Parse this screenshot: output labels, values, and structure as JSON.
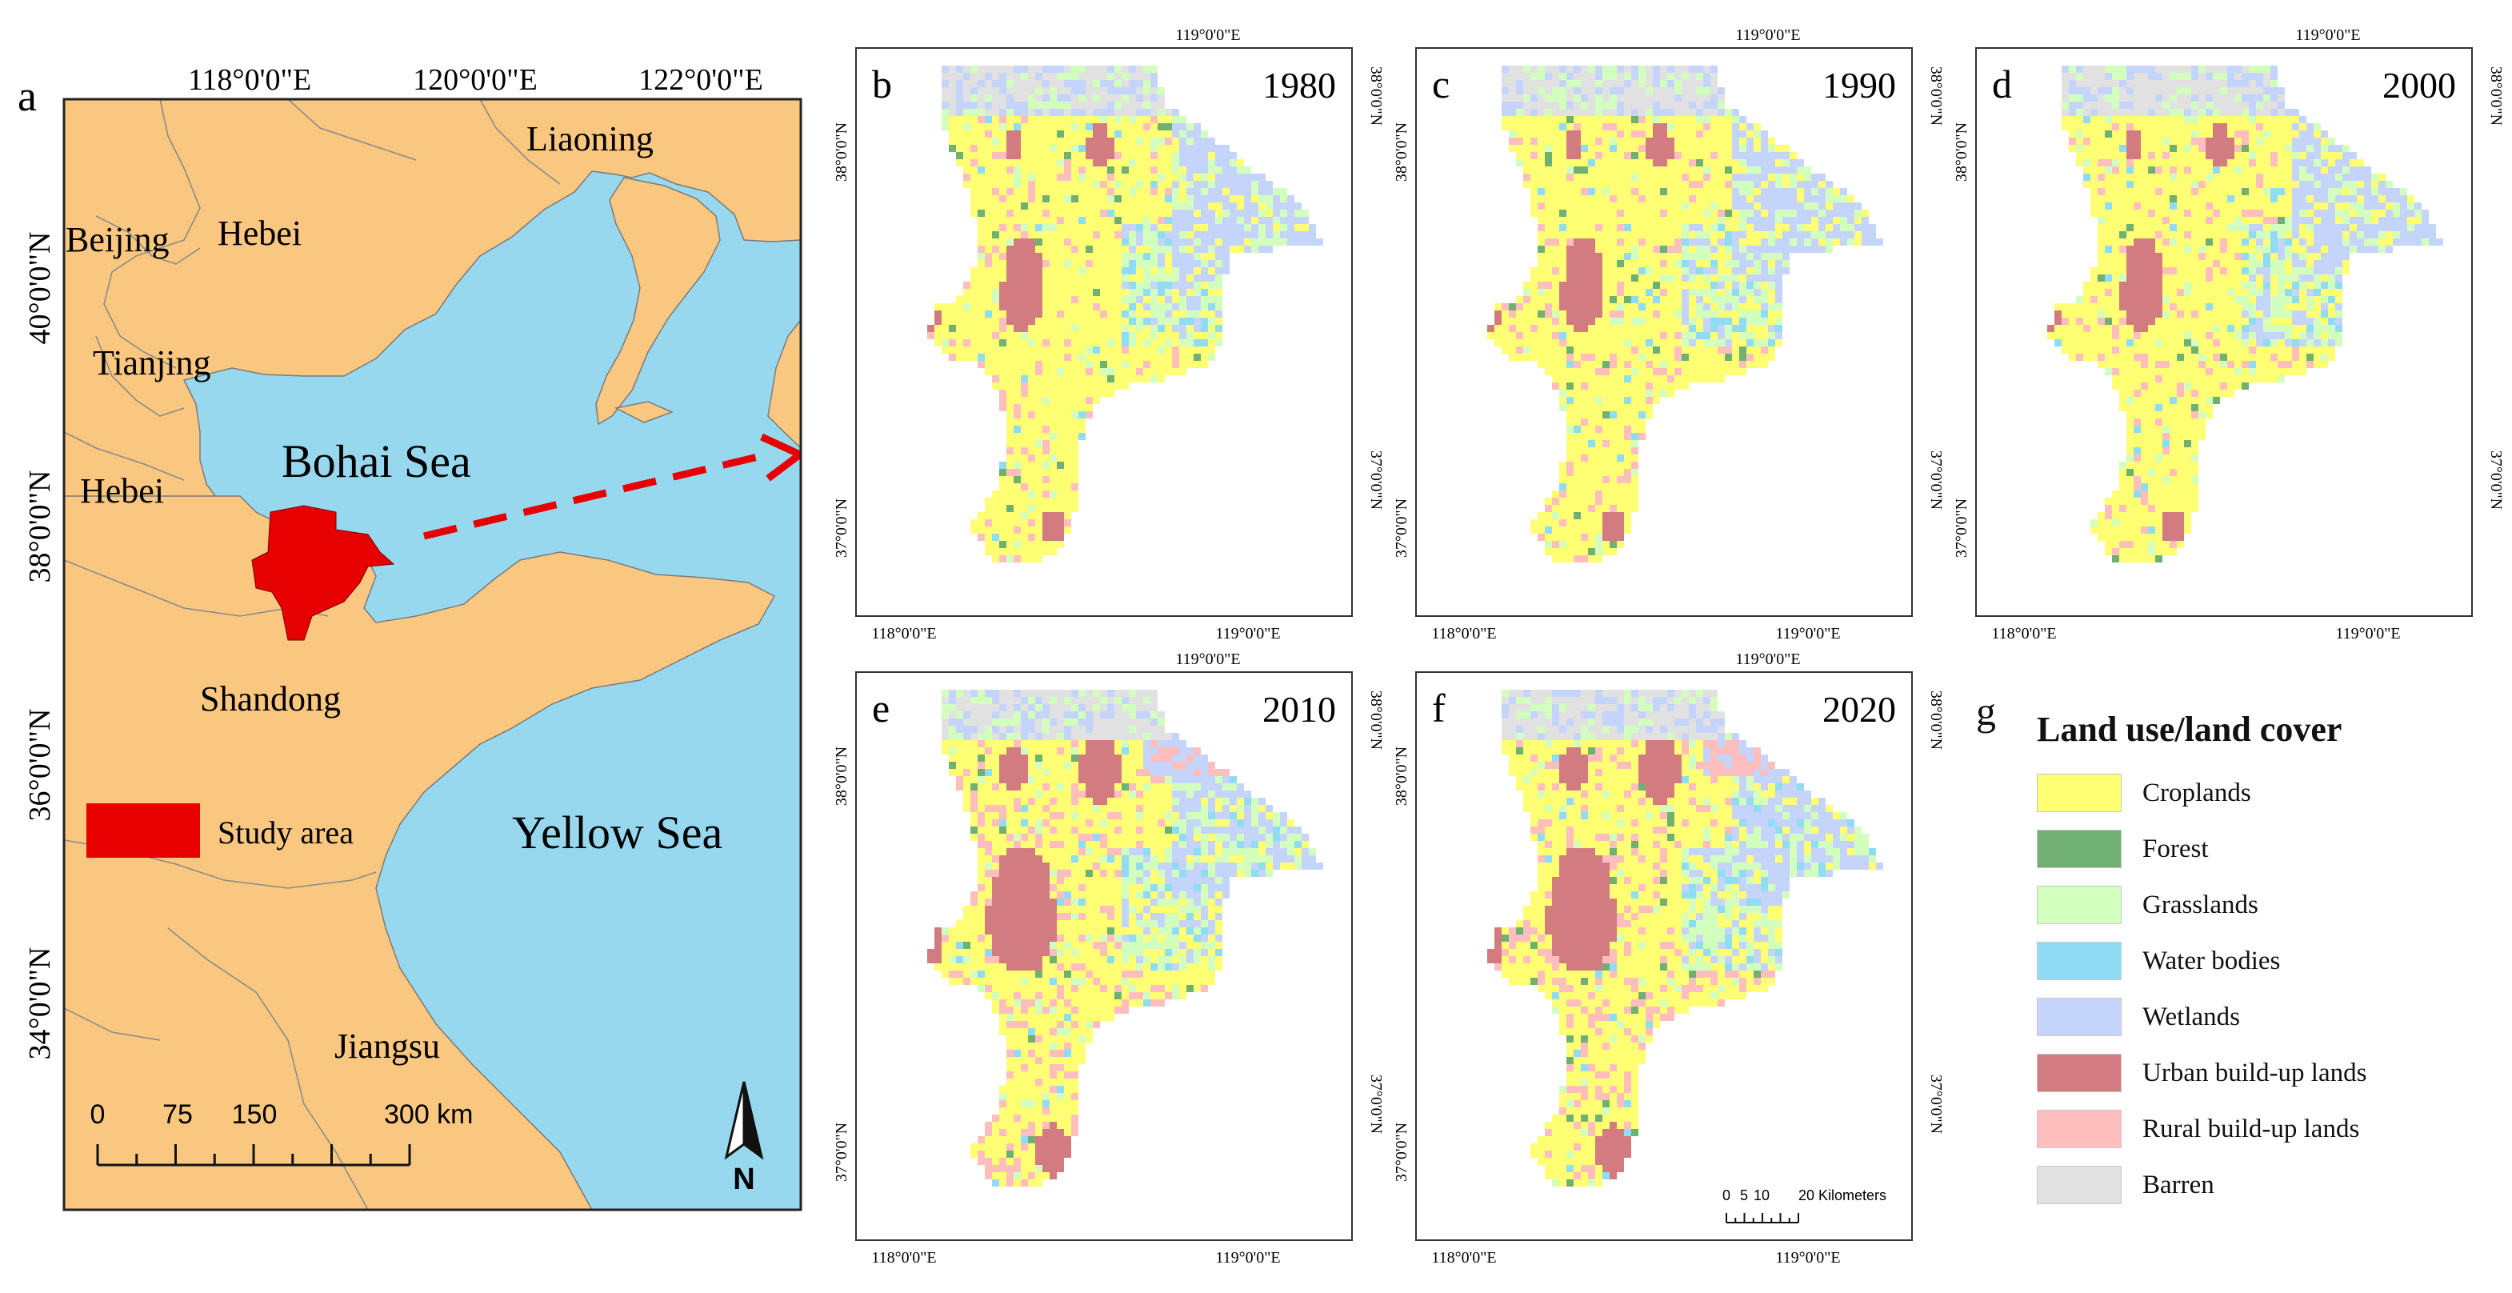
{
  "panel_a": {
    "letter": "a",
    "lon_labels": [
      "118°0'0\"E",
      "120°0'0\"E",
      "122°0'0\"E"
    ],
    "lat_labels": [
      "40°0'0\"N",
      "38°0'0\"N",
      "36°0'0\"N",
      "34°0'0\"N"
    ],
    "regions": {
      "liaoning": "Liaoning",
      "beijing": "Beijing",
      "hebei_north": "Hebei",
      "tianjing": "Tianjing",
      "hebei_south": "Hebei",
      "shandong": "Shandong",
      "jiangsu": "Jiangsu"
    },
    "seas": {
      "bohai": "Bohai Sea",
      "yellow": "Yellow Sea"
    },
    "study_area_label": "Study area",
    "scale_labels": [
      "0",
      "75",
      "150",
      "300 km"
    ],
    "north_label": "N",
    "colors": {
      "land": "#f9c77f",
      "sea": "#97d8ee",
      "study_area": "#e60000",
      "arrow": "#e60000"
    }
  },
  "panels": [
    {
      "letter": "b",
      "year": "1980"
    },
    {
      "letter": "c",
      "year": "1990"
    },
    {
      "letter": "d",
      "year": "2000"
    },
    {
      "letter": "e",
      "year": "2010"
    },
    {
      "letter": "f",
      "year": "2020"
    }
  ],
  "panel_axis": {
    "top_lon": "119°0'0\"E",
    "bottom_lon_left": "118°0'0\"E",
    "bottom_lon_right": "119°0'0\"E",
    "left_lat_top": "38°0'0\"N",
    "left_lat_bottom": "37°0'0\"N",
    "right_lat_top": "38°0'0\"N",
    "right_lat_bottom": "37°0'0\"N"
  },
  "scale_bar": {
    "labels": [
      "0",
      "5",
      "10",
      "20 Kilometers"
    ]
  },
  "legend": {
    "letter": "g",
    "title": "Land use/land cover",
    "items": [
      {
        "label": "Croplands",
        "color": "#ffff73"
      },
      {
        "label": "Forest",
        "color": "#70b072"
      },
      {
        "label": "Grasslands",
        "color": "#d3ffbe"
      },
      {
        "label": "Water bodies",
        "color": "#8fdcf4"
      },
      {
        "label": "Wetlands",
        "color": "#c5d4fa"
      },
      {
        "label": "Urban build-up lands",
        "color": "#d27b80"
      },
      {
        "label": "Rural build-up lands",
        "color": "#ffbebe"
      },
      {
        "label": "Barren",
        "color": "#e1e1e1"
      }
    ]
  }
}
